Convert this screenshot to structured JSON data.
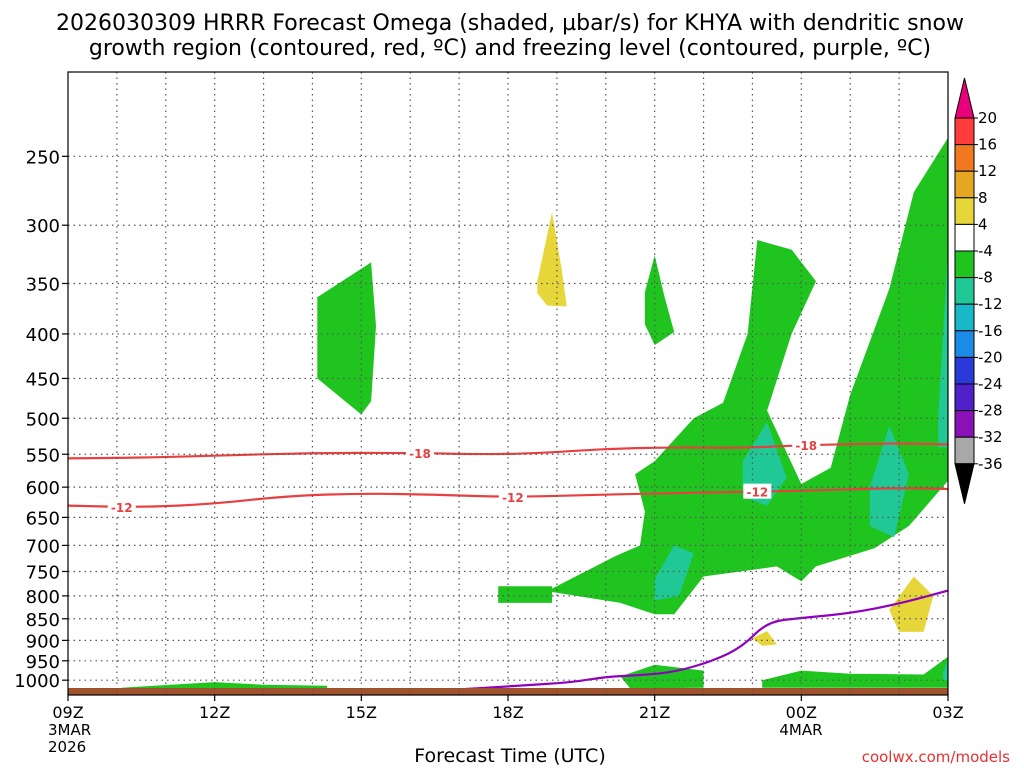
{
  "chart_data": {
    "type": "contour",
    "title_line1": "2026030309 HRRR Forecast Omega (shaded, µbar/s) for KHYA with dendritic snow",
    "title_line2": "growth region (contoured, red, ºC) and freezing level (contoured, purple, ºC)",
    "xlabel": "Forecast Time (UTC)",
    "credit": "coolwx.com/models",
    "x_range_hours": [
      0,
      18
    ],
    "x_ticks": [
      {
        "hour": 0,
        "label": "09Z",
        "sub1": "3MAR",
        "sub2": "2026"
      },
      {
        "hour": 3,
        "label": "12Z",
        "sub1": "",
        "sub2": ""
      },
      {
        "hour": 6,
        "label": "15Z",
        "sub1": "",
        "sub2": ""
      },
      {
        "hour": 9,
        "label": "18Z",
        "sub1": "",
        "sub2": ""
      },
      {
        "hour": 12,
        "label": "21Z",
        "sub1": "",
        "sub2": ""
      },
      {
        "hour": 15,
        "label": "00Z",
        "sub1": "4MAR",
        "sub2": ""
      },
      {
        "hour": 18,
        "label": "03Z",
        "sub1": "",
        "sub2": ""
      }
    ],
    "y_range_hpa": [
      1040,
      200
    ],
    "y_scale": "log",
    "y_ticks": [
      250,
      300,
      350,
      400,
      450,
      500,
      550,
      600,
      650,
      700,
      750,
      800,
      850,
      900,
      950,
      1000
    ],
    "grid": true,
    "colorbar": {
      "levels": [
        "20",
        "16",
        "12",
        "8",
        "4",
        "-4",
        "-8",
        "-12",
        "-16",
        "-20",
        "-24",
        "-28",
        "-32",
        "-36"
      ],
      "colors": [
        "#e8007a",
        "#ff3b3b",
        "#f07820",
        "#e6a822",
        "#e6d63a",
        "#ffffff",
        "#1fc41f",
        "#20c896",
        "#18b8c8",
        "#1a8ce8",
        "#2a3ad8",
        "#5020c8",
        "#8a10b8",
        "#a8a8a8",
        "#000000"
      ]
    },
    "shading_colors": {
      "green": "#1fc41f",
      "teal": "#20c896",
      "yellow": "#e6d63a"
    },
    "dendritic_contours": [
      {
        "label": "-18",
        "color": "#e84040",
        "points_hr_hpa": [
          [
            0,
            556
          ],
          [
            1.5,
            555
          ],
          [
            3,
            552
          ],
          [
            5,
            548
          ],
          [
            7,
            548
          ],
          [
            8.5,
            550
          ],
          [
            9.5,
            549
          ],
          [
            11,
            542
          ],
          [
            12.5,
            540
          ],
          [
            13.8,
            541
          ],
          [
            15,
            537
          ],
          [
            17,
            534
          ],
          [
            18,
            536
          ]
        ],
        "label_positions_hr": [
          7.2,
          15.1
        ]
      },
      {
        "label": "-12",
        "color": "#e84040",
        "points_hr_hpa": [
          [
            0,
            630
          ],
          [
            1.5,
            633
          ],
          [
            3,
            627
          ],
          [
            4.5,
            614
          ],
          [
            6,
            610
          ],
          [
            7.5,
            612
          ],
          [
            9,
            616
          ],
          [
            10.5,
            613
          ],
          [
            12,
            610
          ],
          [
            13.5,
            608
          ],
          [
            15,
            606
          ],
          [
            17,
            601
          ],
          [
            18,
            603
          ]
        ],
        "label_positions_hr": [
          1.1,
          9.1,
          14.1
        ]
      }
    ],
    "freezing_level": {
      "color": "#9000c0",
      "points_hr_hpa": [
        [
          6,
          1040
        ],
        [
          8,
          1025
        ],
        [
          9.3,
          1014
        ],
        [
          10.3,
          1006
        ],
        [
          11,
          991
        ],
        [
          11.7,
          987
        ],
        [
          12.4,
          979
        ],
        [
          13.2,
          950
        ],
        [
          13.8,
          915
        ],
        [
          14.3,
          857
        ],
        [
          15,
          848
        ],
        [
          16,
          838
        ],
        [
          17,
          817
        ],
        [
          18,
          789
        ]
      ]
    },
    "omega_regions": [
      {
        "color": "green",
        "points_hr_hpa": [
          [
            5.1,
            363
          ],
          [
            6.2,
            331
          ],
          [
            6.3,
            392
          ],
          [
            6.2,
            478
          ],
          [
            6.0,
            495
          ],
          [
            5.1,
            450
          ]
        ]
      },
      {
        "color": "green",
        "points_hr_hpa": [
          [
            11.8,
            358
          ],
          [
            12.0,
            325
          ],
          [
            12.2,
            362
          ],
          [
            12.4,
            398
          ],
          [
            12.0,
            412
          ],
          [
            11.8,
            390
          ]
        ]
      },
      {
        "color": "yellow",
        "points_hr_hpa": [
          [
            9.6,
            348
          ],
          [
            9.9,
            290
          ],
          [
            10.1,
            338
          ],
          [
            10.2,
            372
          ],
          [
            9.8,
            371
          ],
          [
            9.6,
            359
          ]
        ]
      },
      {
        "color": "green",
        "points_hr_hpa": [
          [
            8.8,
            780
          ],
          [
            9.9,
            780
          ],
          [
            9.9,
            815
          ],
          [
            8.8,
            815
          ]
        ]
      },
      {
        "color": "green",
        "points_hr_hpa": [
          [
            9.8,
            790
          ],
          [
            11.2,
            720
          ],
          [
            11.7,
            700
          ],
          [
            11.8,
            640
          ],
          [
            11.6,
            580
          ],
          [
            12.0,
            560
          ],
          [
            12.8,
            500
          ],
          [
            13.4,
            480
          ],
          [
            13.9,
            400
          ],
          [
            14.1,
            312
          ],
          [
            14.8,
            320
          ],
          [
            15.3,
            348
          ],
          [
            14.8,
            400
          ],
          [
            14.3,
            490
          ],
          [
            15.0,
            595
          ],
          [
            15.6,
            570
          ],
          [
            16.0,
            470
          ],
          [
            16.8,
            355
          ],
          [
            17.3,
            275
          ],
          [
            18.0,
            238
          ],
          [
            18.0,
            590
          ],
          [
            17.2,
            665
          ],
          [
            16.5,
            705
          ],
          [
            15.3,
            740
          ],
          [
            15.0,
            770
          ],
          [
            14.5,
            740
          ],
          [
            13.0,
            760
          ],
          [
            12.4,
            840
          ],
          [
            12.0,
            840
          ],
          [
            11.3,
            815
          ],
          [
            10.4,
            800
          ]
        ]
      },
      {
        "color": "teal",
        "points_hr_hpa": [
          [
            12.0,
            765
          ],
          [
            12.4,
            700
          ],
          [
            12.8,
            715
          ],
          [
            12.5,
            800
          ],
          [
            12.0,
            810
          ]
        ]
      },
      {
        "color": "teal",
        "points_hr_hpa": [
          [
            13.8,
            560
          ],
          [
            14.3,
            505
          ],
          [
            14.7,
            585
          ],
          [
            14.3,
            630
          ],
          [
            13.8,
            615
          ]
        ]
      },
      {
        "color": "teal",
        "points_hr_hpa": [
          [
            16.4,
            600
          ],
          [
            16.8,
            510
          ],
          [
            17.2,
            580
          ],
          [
            16.9,
            685
          ],
          [
            16.4,
            665
          ]
        ]
      },
      {
        "color": "teal",
        "points_hr_hpa": [
          [
            17.8,
            500
          ],
          [
            18.0,
            320
          ],
          [
            18.0,
            540
          ],
          [
            17.8,
            540
          ]
        ]
      },
      {
        "color": "yellow",
        "points_hr_hpa": [
          [
            16.8,
            830
          ],
          [
            17.3,
            760
          ],
          [
            17.7,
            800
          ],
          [
            17.5,
            880
          ],
          [
            17.0,
            880
          ]
        ]
      },
      {
        "color": "yellow",
        "points_hr_hpa": [
          [
            14.0,
            895
          ],
          [
            14.3,
            878
          ],
          [
            14.5,
            910
          ],
          [
            14.2,
            913
          ]
        ]
      },
      {
        "color": "green",
        "points_hr_hpa": [
          [
            11.3,
            990
          ],
          [
            12.0,
            960
          ],
          [
            13.0,
            975
          ],
          [
            13.0,
            1020
          ],
          [
            11.5,
            1022
          ]
        ]
      },
      {
        "color": "green",
        "points_hr_hpa": [
          [
            14.2,
            1000
          ],
          [
            15.0,
            975
          ],
          [
            16.0,
            983
          ],
          [
            17.5,
            985
          ],
          [
            18.0,
            940
          ],
          [
            18.0,
            1020
          ],
          [
            14.2,
            1020
          ]
        ]
      },
      {
        "color": "teal",
        "points_hr_hpa": [
          [
            17.9,
            980
          ],
          [
            18.0,
            945
          ],
          [
            18.0,
            1000
          ],
          [
            17.9,
            1000
          ]
        ]
      },
      {
        "color": "green",
        "points_hr_hpa": [
          [
            1.1,
            1020
          ],
          [
            3,
            1005
          ],
          [
            4,
            1012
          ],
          [
            5.3,
            1015
          ],
          [
            5.3,
            1024
          ],
          [
            1.1,
            1026
          ]
        ]
      }
    ]
  }
}
